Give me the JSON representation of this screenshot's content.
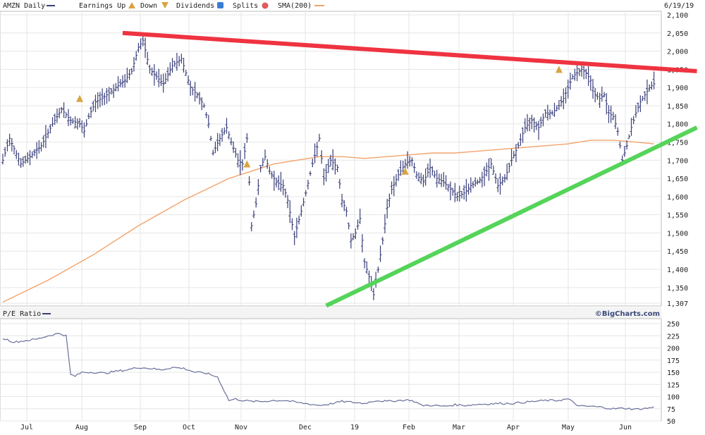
{
  "header": {
    "symbol_label": "AMZN Daily",
    "earnings_label": "Earnings Up",
    "down_label": "Down",
    "dividends_label": "Dividends",
    "splits_label": "Splits",
    "sma_label": "SMA(200)",
    "date": "6/19/19"
  },
  "colors": {
    "price_bar": "#3a3f7a",
    "sma": "#f2a36b",
    "resistance": "#ef3340",
    "support": "#55d45a",
    "earnings_marker": "#d9a441",
    "dividend_marker": "#3a7bd5",
    "split_marker": "#e05a5a"
  },
  "watermark": "©BigCharts.com",
  "chart_data": [
    {
      "type": "ohlc",
      "name": "price",
      "y_ticks": [
        "2,100",
        "2,050",
        "2,000",
        "1,950",
        "1,900",
        "1,850",
        "1,800",
        "1,750",
        "1,700",
        "1,650",
        "1,600",
        "1,550",
        "1,500",
        "1,450",
        "1,400",
        "1,350",
        "1,307"
      ],
      "ylim": [
        1307,
        2100
      ],
      "x_ticks": [
        "Jul",
        "Aug",
        "Sep",
        "Oct",
        "Nov",
        "Dec",
        "19",
        "Feb",
        "Mar",
        "Apr",
        "May",
        "Jun"
      ],
      "price_path": [
        [
          0,
          1700
        ],
        [
          3,
          1760
        ],
        [
          8,
          1690
        ],
        [
          12,
          1710
        ],
        [
          17,
          1740
        ],
        [
          22,
          1800
        ],
        [
          26,
          1840
        ],
        [
          30,
          1810
        ],
        [
          34,
          1800
        ],
        [
          36,
          1780
        ],
        [
          38,
          1820
        ],
        [
          41,
          1860
        ],
        [
          45,
          1875
        ],
        [
          50,
          1900
        ],
        [
          54,
          1920
        ],
        [
          57,
          1945
        ],
        [
          60,
          2010
        ],
        [
          62,
          2030
        ],
        [
          65,
          1950
        ],
        [
          68,
          1930
        ],
        [
          71,
          1910
        ],
        [
          75,
          1960
        ],
        [
          79,
          1980
        ],
        [
          83,
          1900
        ],
        [
          86,
          1880
        ],
        [
          89,
          1850
        ],
        [
          91,
          1800
        ],
        [
          93,
          1720
        ],
        [
          96,
          1760
        ],
        [
          99,
          1790
        ],
        [
          101,
          1750
        ],
        [
          104,
          1700
        ],
        [
          106,
          1690
        ],
        [
          108,
          1760
        ],
        [
          110,
          1520
        ],
        [
          112,
          1580
        ],
        [
          114,
          1680
        ],
        [
          116,
          1710
        ],
        [
          118,
          1670
        ],
        [
          121,
          1640
        ],
        [
          124,
          1630
        ],
        [
          126,
          1590
        ],
        [
          129,
          1490
        ],
        [
          132,
          1560
        ],
        [
          134,
          1610
        ],
        [
          137,
          1690
        ],
        [
          140,
          1760
        ],
        [
          142,
          1650
        ],
        [
          145,
          1700
        ],
        [
          148,
          1680
        ],
        [
          150,
          1590
        ],
        [
          152,
          1560
        ],
        [
          154,
          1480
        ],
        [
          156,
          1500
        ],
        [
          158,
          1540
        ],
        [
          160,
          1420
        ],
        [
          162,
          1380
        ],
        [
          164,
          1330
        ],
        [
          166,
          1400
        ],
        [
          168,
          1480
        ],
        [
          170,
          1570
        ],
        [
          172,
          1620
        ],
        [
          175,
          1660
        ],
        [
          178,
          1690
        ],
        [
          181,
          1700
        ],
        [
          183,
          1660
        ],
        [
          186,
          1640
        ],
        [
          189,
          1680
        ],
        [
          192,
          1650
        ],
        [
          195,
          1640
        ],
        [
          198,
          1620
        ],
        [
          201,
          1600
        ],
        [
          204,
          1610
        ],
        [
          207,
          1630
        ],
        [
          210,
          1640
        ],
        [
          213,
          1660
        ],
        [
          216,
          1690
        ],
        [
          219,
          1630
        ],
        [
          222,
          1650
        ],
        [
          225,
          1700
        ],
        [
          228,
          1740
        ],
        [
          231,
          1790
        ],
        [
          234,
          1810
        ],
        [
          237,
          1790
        ],
        [
          240,
          1830
        ],
        [
          243,
          1830
        ],
        [
          246,
          1850
        ],
        [
          248,
          1870
        ],
        [
          250,
          1900
        ],
        [
          252,
          1930
        ],
        [
          254,
          1940
        ],
        [
          256,
          1950
        ],
        [
          258,
          1940
        ],
        [
          260,
          1920
        ],
        [
          262,
          1880
        ],
        [
          264,
          1870
        ],
        [
          266,
          1880
        ],
        [
          268,
          1830
        ],
        [
          270,
          1820
        ],
        [
          272,
          1780
        ],
        [
          274,
          1700
        ],
        [
          276,
          1740
        ],
        [
          278,
          1790
        ],
        [
          280,
          1830
        ],
        [
          282,
          1860
        ],
        [
          284,
          1880
        ],
        [
          286,
          1900
        ],
        [
          288,
          1910
        ]
      ],
      "earnings_markers": [
        [
          34,
          1870
        ],
        [
          108,
          1690
        ],
        [
          178,
          1670
        ],
        [
          246,
          1950
        ]
      ]
    },
    {
      "type": "line",
      "name": "SMA(200)",
      "x": [
        0,
        20,
        40,
        60,
        80,
        100,
        110,
        120,
        130,
        140,
        150,
        160,
        170,
        180,
        190,
        200,
        210,
        220,
        230,
        240,
        250,
        260,
        270,
        280,
        288
      ],
      "values": [
        1310,
        1370,
        1440,
        1520,
        1590,
        1650,
        1670,
        1690,
        1700,
        1710,
        1710,
        1705,
        1710,
        1715,
        1720,
        1720,
        1725,
        1730,
        1735,
        1740,
        1745,
        1755,
        1755,
        1750,
        1745
      ]
    },
    {
      "type": "trendline",
      "name": "resistance",
      "from": [
        53,
        2050
      ],
      "to": [
        307,
        1945
      ]
    },
    {
      "type": "trendline",
      "name": "support",
      "from": [
        143,
        1300
      ],
      "to": [
        307,
        1790
      ]
    },
    {
      "type": "line",
      "name": "P/E Ratio",
      "label": "P/E Ratio",
      "y_ticks": [
        "250",
        "225",
        "200",
        "175",
        "150",
        "125",
        "100",
        "75",
        "50"
      ],
      "ylim": [
        50,
        250
      ],
      "x": [
        0,
        5,
        10,
        15,
        20,
        25,
        28,
        30,
        32,
        35,
        40,
        45,
        50,
        55,
        60,
        65,
        70,
        75,
        80,
        85,
        90,
        95,
        100,
        103,
        105,
        110,
        115,
        120,
        125,
        130,
        135,
        140,
        145,
        150,
        155,
        160,
        165,
        170,
        175,
        180,
        183,
        185,
        190,
        195,
        200,
        205,
        210,
        215,
        220,
        225,
        230,
        235,
        240,
        245,
        250,
        255,
        260,
        265,
        270,
        275,
        280,
        285,
        288
      ],
      "values": [
        220,
        212,
        215,
        218,
        225,
        230,
        225,
        145,
        142,
        150,
        150,
        148,
        152,
        155,
        160,
        158,
        155,
        160,
        158,
        150,
        148,
        140,
        92,
        95,
        93,
        90,
        90,
        92,
        92,
        88,
        85,
        82,
        85,
        90,
        88,
        86,
        92,
        90,
        92,
        93,
        88,
        82,
        82,
        80,
        83,
        82,
        84,
        85,
        86,
        86,
        88,
        90,
        92,
        92,
        95,
        80,
        80,
        78,
        75,
        76,
        74,
        76,
        78
      ]
    }
  ]
}
